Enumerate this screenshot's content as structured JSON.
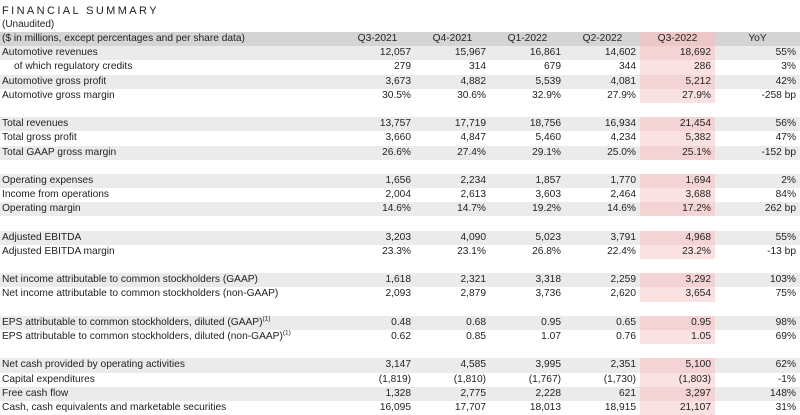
{
  "header": {
    "title": "FINANCIAL SUMMARY",
    "subtitle": "(Unaudited)"
  },
  "table": {
    "columns": [
      "($ in millions, except percentages and per share data)",
      "Q3-2021",
      "Q4-2021",
      "Q1-2022",
      "Q2-2022",
      "Q3-2022",
      "YoY"
    ],
    "footnote_mark": "(1)",
    "groups": [
      [
        [
          "Automotive revenues",
          "12,057",
          "15,967",
          "16,861",
          "14,602",
          "18,692",
          "55%"
        ],
        [
          "of which regulatory credits",
          "279",
          "314",
          "679",
          "344",
          "286",
          "3%"
        ],
        [
          "Automotive gross profit",
          "3,673",
          "4,882",
          "5,539",
          "4,081",
          "5,212",
          "42%"
        ],
        [
          "Automotive gross margin",
          "30.5%",
          "30.6%",
          "32.9%",
          "27.9%",
          "27.9%",
          "-258 bp"
        ]
      ],
      [
        [
          "Total revenues",
          "13,757",
          "17,719",
          "18,756",
          "16,934",
          "21,454",
          "56%"
        ],
        [
          "Total gross profit",
          "3,660",
          "4,847",
          "5,460",
          "4,234",
          "5,382",
          "47%"
        ],
        [
          "Total GAAP gross margin",
          "26.6%",
          "27.4%",
          "29.1%",
          "25.0%",
          "25.1%",
          "-152 bp"
        ]
      ],
      [
        [
          "Operating expenses",
          "1,656",
          "2,234",
          "1,857",
          "1,770",
          "1,694",
          "2%"
        ],
        [
          "Income from operations",
          "2,004",
          "2,613",
          "3,603",
          "2,464",
          "3,688",
          "84%"
        ],
        [
          "Operating margin",
          "14.6%",
          "14.7%",
          "19.2%",
          "14.6%",
          "17.2%",
          "262 bp"
        ]
      ],
      [
        [
          "Adjusted EBITDA",
          "3,203",
          "4,090",
          "5,023",
          "3,791",
          "4,968",
          "55%"
        ],
        [
          "Adjusted EBITDA margin",
          "23.3%",
          "23.1%",
          "26.8%",
          "22.4%",
          "23.2%",
          "-13 bp"
        ]
      ],
      [
        [
          "Net income attributable to common stockholders (GAAP)",
          "1,618",
          "2,321",
          "3,318",
          "2,259",
          "3,292",
          "103%"
        ],
        [
          "Net income attributable to common stockholders (non-GAAP)",
          "2,093",
          "2,879",
          "3,736",
          "2,620",
          "3,654",
          "75%"
        ]
      ],
      [
        [
          "EPS attributable to common stockholders, diluted (GAAP)",
          "0.48",
          "0.68",
          "0.95",
          "0.65",
          "0.95",
          "98%"
        ],
        [
          "EPS attributable to common stockholders, diluted (non-GAAP)",
          "0.62",
          "0.85",
          "1.07",
          "0.76",
          "1.05",
          "69%"
        ]
      ],
      [
        [
          "Net cash provided by operating activities",
          "3,147",
          "4,585",
          "3,995",
          "2,351",
          "5,100",
          "62%"
        ],
        [
          "Capital expenditures",
          "(1,819)",
          "(1,810)",
          "(1,767)",
          "(1,730)",
          "(1,803)",
          "-1%"
        ],
        [
          "Free cash flow",
          "1,328",
          "2,775",
          "2,228",
          "621",
          "3,297",
          "148%"
        ],
        [
          "Cash, cash equivalents and marketable securities",
          "16,095",
          "17,707",
          "18,013",
          "18,915",
          "21,107",
          "31%"
        ]
      ]
    ]
  }
}
